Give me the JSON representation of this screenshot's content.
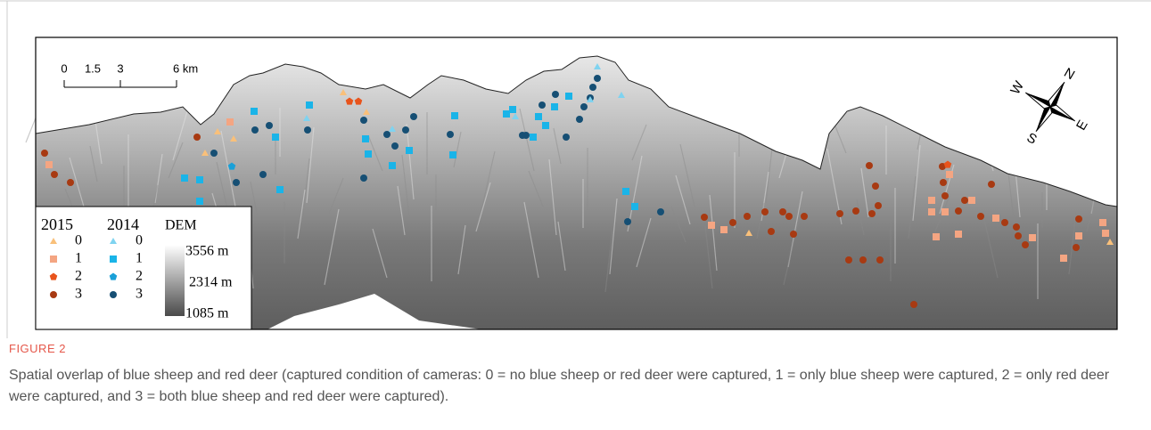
{
  "map": {
    "scale_bar": [
      "0",
      "1.5",
      "3",
      "6 km"
    ],
    "compass": [
      "W",
      "N",
      "S",
      "E"
    ],
    "legend": {
      "years": [
        "2015",
        "2014"
      ],
      "dem_title": "DEM",
      "classes": [
        "0",
        "1",
        "2",
        "3"
      ],
      "dem_labels": [
        "3556 m",
        "2314 m",
        "1085 m"
      ]
    }
  },
  "figure": {
    "label": "FIGURE 2",
    "caption": "Spatial overlap of blue sheep and red deer (captured condition of cameras: 0 = no blue sheep or red deer were captured, 1 = only blue sheep were captured, 2 = only red deer were captured, and 3 = both blue sheep and red deer were captured)."
  }
}
